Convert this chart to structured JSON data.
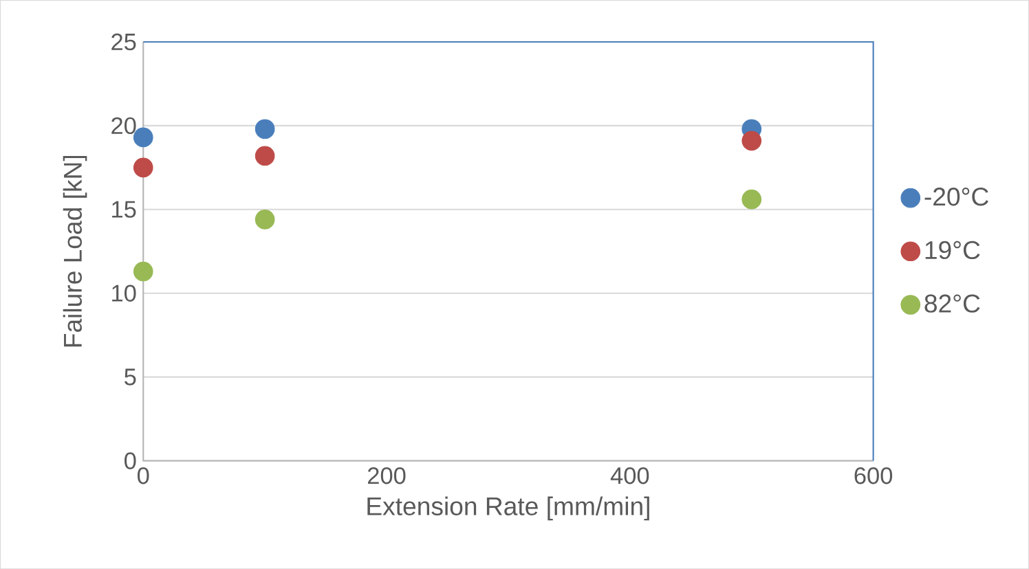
{
  "chart_data": {
    "type": "scatter",
    "xlabel": "Extension Rate [mm/min]",
    "ylabel": "Failure Load [kN]",
    "xlim": [
      0,
      600
    ],
    "xticks": [
      0,
      200,
      400,
      600
    ],
    "ylim": [
      0,
      25
    ],
    "yticks": [
      0,
      5,
      10,
      15,
      20,
      25
    ],
    "grid": "y",
    "legend": "right",
    "marker": "circle",
    "series": [
      {
        "name": "-20°C",
        "color": "#4a7ebb",
        "x": [
          0,
          100,
          500
        ],
        "values": [
          19.3,
          19.8,
          19.8
        ]
      },
      {
        "name": "19°C",
        "color": "#be4b48",
        "x": [
          0,
          100,
          500
        ],
        "values": [
          17.5,
          18.2,
          19.1
        ]
      },
      {
        "name": "82°C",
        "color": "#98b954",
        "x": [
          0,
          100,
          500
        ],
        "values": [
          11.3,
          14.4,
          15.6
        ]
      }
    ]
  }
}
